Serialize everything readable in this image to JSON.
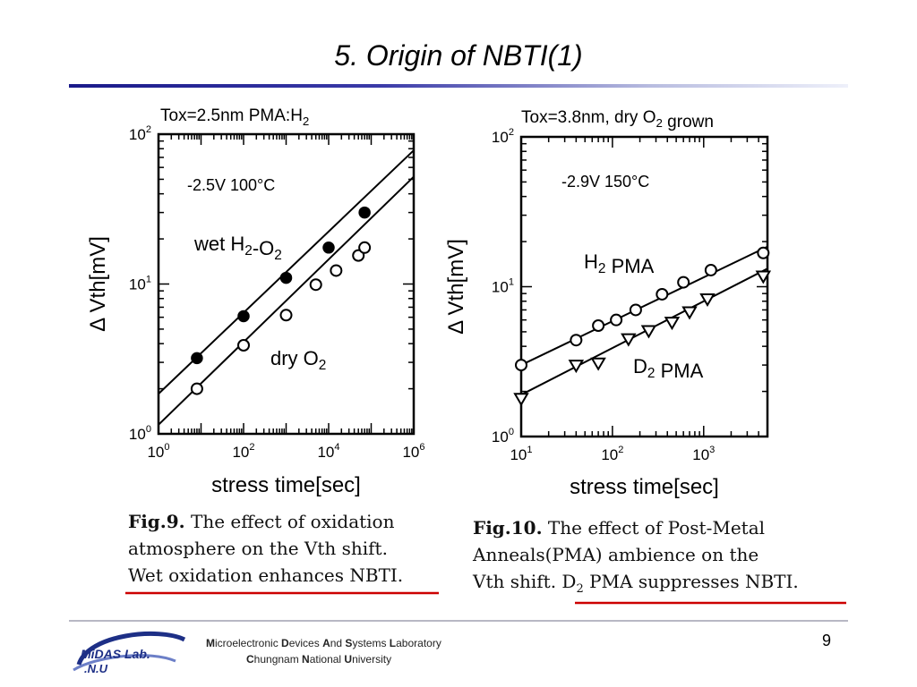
{
  "slide": {
    "title": "5. Origin of NBTI(1)",
    "page_number": "9"
  },
  "colors": {
    "title_bar": "#1a1a8a",
    "underline": "#cc0000",
    "plot_line": "#000000"
  },
  "captions": {
    "fig9": {
      "label": "Fig.9.",
      "line1": " The effect of oxidation",
      "line2": "atmosphere on the Vth shift.",
      "line3": "Wet oxidation enhances NBTI."
    },
    "fig10": {
      "label": "Fig.10.",
      "line1": " The effect of Post-Metal",
      "line2": "Anneals(PMA) ambience on the",
      "line3": "Vth shift. D2 PMA suppresses NBTI."
    }
  },
  "footer": {
    "lab_parts": [
      {
        "b": "M",
        "r": "icroelectronic "
      },
      {
        "b": "D",
        "r": "evices "
      },
      {
        "b": "A",
        "r": "nd "
      },
      {
        "b": "S",
        "r": "ystems "
      },
      {
        "b": "L",
        "r": "aboratory"
      }
    ],
    "univ_parts": [
      {
        "b": "C",
        "r": "hungnam "
      },
      {
        "b": "N",
        "r": "ational "
      },
      {
        "b": "U",
        "r": "niversity"
      }
    ],
    "logo_line1": "MiDAS Lab.",
    "logo_line2": ".N.U"
  },
  "chart_data": [
    {
      "type": "line",
      "xscale": "log",
      "yscale": "log",
      "header": "Tox=2.5nm PMA:H2",
      "condition": "-2.5V 100°C",
      "xlabel": "stress time[sec]",
      "ylabel": "Δ Vth[mV]",
      "xlim": [
        1,
        1000000
      ],
      "ylim": [
        1,
        100
      ],
      "x_ticks": [
        {
          "value": 1,
          "label": "10^0"
        },
        {
          "value": 100,
          "label": "10^2"
        },
        {
          "value": 10000,
          "label": "10^4"
        },
        {
          "value": 1000000,
          "label": "10^6"
        }
      ],
      "y_ticks": [
        {
          "value": 1,
          "label": "10^0"
        },
        {
          "value": 10,
          "label": "10^1"
        },
        {
          "value": 100,
          "label": "10^2"
        }
      ],
      "series": [
        {
          "name": "wet H2-O2",
          "marker": "filled-circle",
          "x": [
            8,
            100,
            1000,
            10000,
            70000
          ],
          "y": [
            3.2,
            6.1,
            11.0,
            17.5,
            30.0
          ],
          "fit": {
            "x": [
              1,
              1000000
            ],
            "y": [
              1.85,
              78
            ]
          }
        },
        {
          "name": "dry O2",
          "marker": "open-circle",
          "x": [
            8,
            100,
            1000,
            5000,
            15000,
            50000,
            70000
          ],
          "y": [
            2.0,
            3.9,
            6.2,
            9.9,
            12.3,
            15.5,
            17.5
          ],
          "fit": {
            "x": [
              1,
              1000000
            ],
            "y": [
              1.15,
              52
            ]
          }
        }
      ]
    },
    {
      "type": "line",
      "xscale": "log",
      "yscale": "log",
      "header": "Tox=3.8nm, dry O2 grown",
      "condition": "-2.9V 150°C",
      "xlabel": "stress time[sec]",
      "ylabel": "Δ Vth[mV]",
      "xlim": [
        10,
        5000
      ],
      "ylim": [
        1,
        100
      ],
      "x_ticks": [
        {
          "value": 10,
          "label": "10^1"
        },
        {
          "value": 100,
          "label": "10^2"
        },
        {
          "value": 1000,
          "label": "10^3"
        }
      ],
      "y_ticks": [
        {
          "value": 1,
          "label": "10^0"
        },
        {
          "value": 10,
          "label": "10^1"
        },
        {
          "value": 100,
          "label": "10^2"
        }
      ],
      "series": [
        {
          "name": "H2 PMA",
          "marker": "open-circle",
          "x": [
            10,
            40,
            70,
            110,
            180,
            350,
            600,
            1200,
            4500
          ],
          "y": [
            3.0,
            4.4,
            5.5,
            6.0,
            7.0,
            8.9,
            10.7,
            12.9,
            16.8
          ],
          "fit": {
            "x": [
              10,
              5000
            ],
            "y": [
              3.0,
              18.5
            ]
          }
        },
        {
          "name": "D2 PMA",
          "marker": "open-triangle",
          "x": [
            10,
            40,
            70,
            150,
            250,
            450,
            700,
            1100,
            4500
          ],
          "y": [
            1.8,
            3.0,
            3.1,
            4.5,
            5.1,
            5.8,
            6.8,
            8.3,
            11.8
          ],
          "fit": {
            "x": [
              10,
              5000
            ],
            "y": [
              1.9,
              13.2
            ]
          }
        }
      ]
    }
  ]
}
